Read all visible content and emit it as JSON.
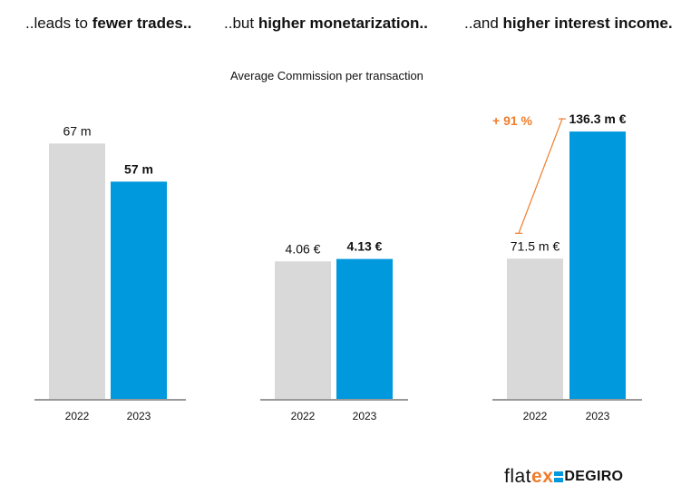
{
  "panels": [
    {
      "title_pre": "..leads to ",
      "title_bold": "fewer trades..",
      "title_post": ""
    },
    {
      "title_pre": "..but ",
      "title_bold": "higher monetarization..",
      "title_post": ""
    },
    {
      "title_pre": "..and ",
      "title_bold": "higher interest income.",
      "title_post": ""
    }
  ],
  "subtitle": "Average Commission per transaction",
  "colors": {
    "y2022": "#d9d9d9",
    "y2023": "#0099dd",
    "accent": "#f07c2c",
    "axis": "#333333"
  },
  "chart_data": [
    {
      "type": "bar",
      "categories": [
        "2022",
        "2023"
      ],
      "values": [
        67,
        57
      ],
      "data_labels": [
        "67 m",
        "57 m"
      ],
      "title": "..leads to fewer trades..",
      "ylim": [
        0,
        88
      ]
    },
    {
      "type": "bar",
      "categories": [
        "2022",
        "2023"
      ],
      "values": [
        4.06,
        4.13
      ],
      "data_labels": [
        "4.06 €",
        "4.13 €"
      ],
      "title": "..but higher monetarization..",
      "subtitle": "Average Commission per transaction",
      "ylim": [
        0,
        9.9
      ]
    },
    {
      "type": "bar",
      "categories": [
        "2022",
        "2023"
      ],
      "values": [
        71.5,
        136.3
      ],
      "data_labels": [
        "71.5 m €",
        "136.3 m €"
      ],
      "title": "..and higher interest income.",
      "annotation": "+ 91 %",
      "ylim": [
        0,
        171
      ]
    }
  ],
  "logo": {
    "part1": "flat",
    "part2": "ex",
    "part3": "DEGIRO"
  }
}
